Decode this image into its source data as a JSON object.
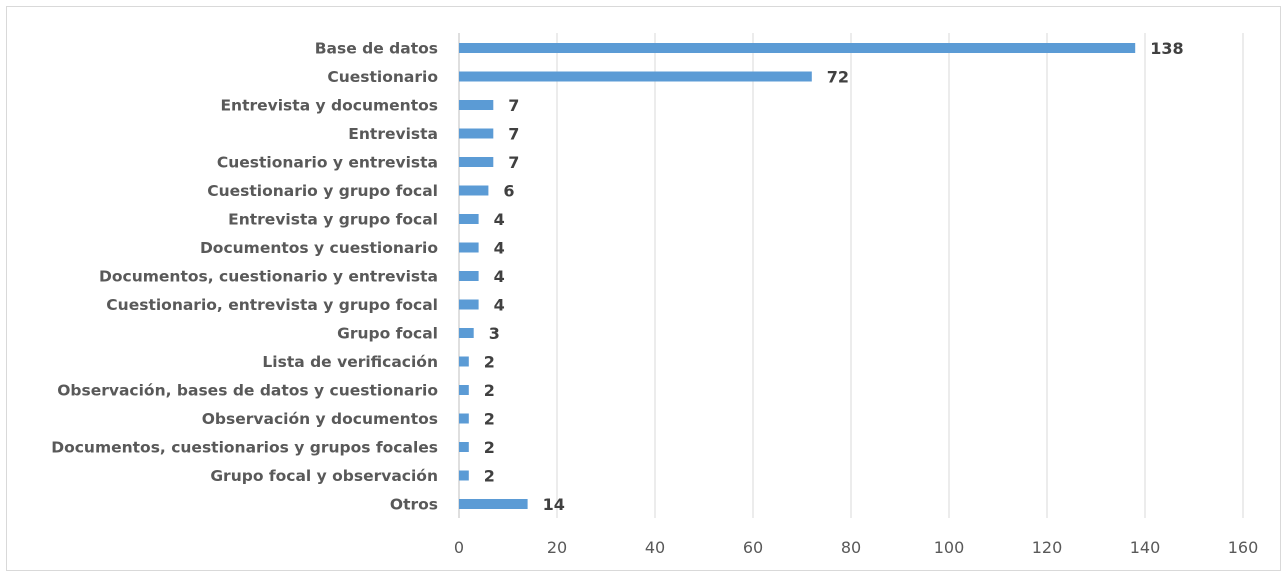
{
  "chart_data": {
    "type": "bar",
    "orientation": "horizontal",
    "categories": [
      "Base de datos",
      "Cuestionario",
      "Entrevista y documentos",
      "Entrevista",
      "Cuestionario y entrevista",
      "Cuestionario y grupo focal",
      "Entrevista y grupo focal",
      "Documentos y cuestionario",
      "Documentos, cuestionario y entrevista",
      "Cuestionario, entrevista y grupo focal",
      "Grupo focal",
      "Lista de verificación",
      "Observación, bases de datos y cuestionario",
      "Observación y documentos",
      "Documentos, cuestionarios y grupos focales",
      "Grupo focal y observación",
      "Otros"
    ],
    "values": [
      138,
      72,
      7,
      7,
      7,
      6,
      4,
      4,
      4,
      4,
      3,
      2,
      2,
      2,
      2,
      2,
      14
    ],
    "xlim": [
      0,
      160
    ],
    "xticks": [
      0,
      20,
      40,
      60,
      80,
      100,
      120,
      140,
      160
    ],
    "grid": "vertical",
    "data_labels": true,
    "bar_color": "#5b9bd5",
    "title": "",
    "xlabel": "",
    "ylabel": ""
  }
}
